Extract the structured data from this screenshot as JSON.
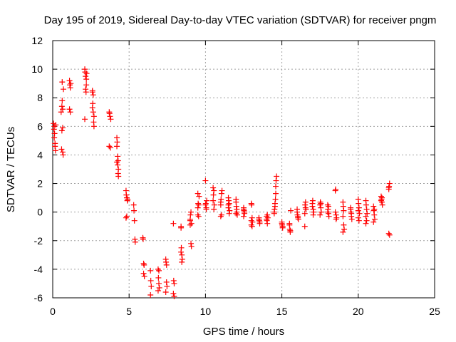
{
  "chart_data": {
    "type": "scatter",
    "title": "Day 195 of 2019, Sidereal Day-to-day VTEC variation (SDTVAR) for receiver pngm",
    "xlabel": "GPS time / hours",
    "ylabel": "SDTVAR / TECUs",
    "xlim": [
      0,
      25
    ],
    "ylim": [
      -6,
      12
    ],
    "xticks": [
      "0",
      "5",
      "10",
      "15",
      "20",
      "25"
    ],
    "yticks": [
      "-6",
      "-4",
      "-2",
      "0",
      "2",
      "4",
      "6",
      "8",
      "10",
      "12"
    ],
    "grid": true,
    "marker": "plus",
    "color": "#ff0000",
    "series": [
      {
        "name": "SDTVAR",
        "points": [
          [
            0.05,
            6.2
          ],
          [
            0.08,
            5.8
          ],
          [
            0.1,
            6.0
          ],
          [
            0.12,
            5.5
          ],
          [
            0.15,
            4.6
          ],
          [
            0.18,
            4.3
          ],
          [
            0.2,
            6.1
          ],
          [
            0.1,
            5.2
          ],
          [
            0.15,
            4.8
          ],
          [
            0.55,
            7.0
          ],
          [
            0.6,
            7.4
          ],
          [
            0.62,
            7.8
          ],
          [
            0.65,
            5.9
          ],
          [
            0.6,
            5.7
          ],
          [
            0.65,
            4.2
          ],
          [
            0.68,
            4.0
          ],
          [
            0.7,
            8.6
          ],
          [
            0.62,
            9.1
          ],
          [
            0.65,
            7.2
          ],
          [
            0.58,
            4.4
          ],
          [
            1.1,
            9.2
          ],
          [
            1.12,
            8.9
          ],
          [
            1.15,
            8.7
          ],
          [
            1.1,
            7.2
          ],
          [
            1.18,
            9.0
          ],
          [
            1.15,
            7.0
          ],
          [
            2.1,
            10.0
          ],
          [
            2.12,
            9.8
          ],
          [
            2.15,
            9.5
          ],
          [
            2.2,
            9.3
          ],
          [
            2.15,
            8.6
          ],
          [
            2.18,
            8.4
          ],
          [
            2.1,
            6.5
          ],
          [
            2.22,
            9.7
          ],
          [
            2.2,
            8.9
          ],
          [
            2.6,
            8.4
          ],
          [
            2.65,
            8.2
          ],
          [
            2.62,
            7.6
          ],
          [
            2.6,
            7.3
          ],
          [
            2.65,
            7.0
          ],
          [
            2.7,
            6.7
          ],
          [
            2.68,
            6.3
          ],
          [
            2.7,
            6.0
          ],
          [
            2.6,
            8.5
          ],
          [
            3.7,
            7.0
          ],
          [
            3.75,
            6.7
          ],
          [
            3.8,
            6.5
          ],
          [
            3.72,
            6.9
          ],
          [
            3.7,
            4.6
          ],
          [
            3.78,
            4.5
          ],
          [
            4.2,
            5.2
          ],
          [
            4.22,
            4.9
          ],
          [
            4.2,
            4.6
          ],
          [
            4.25,
            3.9
          ],
          [
            4.28,
            3.6
          ],
          [
            4.25,
            3.3
          ],
          [
            4.3,
            3.0
          ],
          [
            4.28,
            2.7
          ],
          [
            4.3,
            2.5
          ],
          [
            4.2,
            3.5
          ],
          [
            4.8,
            1.5
          ],
          [
            4.82,
            1.2
          ],
          [
            4.85,
            1.0
          ],
          [
            4.88,
            0.8
          ],
          [
            4.9,
            0.9
          ],
          [
            4.85,
            -0.3
          ],
          [
            4.8,
            -0.4
          ],
          [
            5.3,
            0.5
          ],
          [
            5.32,
            0.1
          ],
          [
            5.35,
            -0.6
          ],
          [
            5.38,
            -1.9
          ],
          [
            5.4,
            -2.1
          ],
          [
            5.9,
            -1.8
          ],
          [
            5.92,
            -1.9
          ],
          [
            5.95,
            -3.6
          ],
          [
            5.98,
            -3.7
          ],
          [
            5.95,
            -4.3
          ],
          [
            6.0,
            -4.5
          ],
          [
            6.4,
            -4.1
          ],
          [
            6.42,
            -4.8
          ],
          [
            6.45,
            -5.2
          ],
          [
            6.4,
            -5.8
          ],
          [
            6.9,
            -4.0
          ],
          [
            6.92,
            -4.6
          ],
          [
            6.95,
            -5.0
          ],
          [
            6.98,
            -5.3
          ],
          [
            6.9,
            -5.5
          ],
          [
            6.95,
            -4.1
          ],
          [
            7.4,
            -3.3
          ],
          [
            7.42,
            -3.5
          ],
          [
            7.45,
            -4.9
          ],
          [
            7.48,
            -5.2
          ],
          [
            7.4,
            -5.6
          ],
          [
            7.45,
            -3.7
          ],
          [
            7.9,
            -0.8
          ],
          [
            7.92,
            -4.8
          ],
          [
            7.95,
            -5.0
          ],
          [
            7.9,
            -5.7
          ],
          [
            7.95,
            -5.9
          ],
          [
            8.4,
            -1.0
          ],
          [
            8.42,
            -2.5
          ],
          [
            8.45,
            -3.0
          ],
          [
            8.48,
            -3.3
          ],
          [
            8.4,
            -2.8
          ],
          [
            8.45,
            -3.5
          ],
          [
            8.4,
            -1.1
          ],
          [
            9.0,
            -0.5
          ],
          [
            9.02,
            -0.2
          ],
          [
            9.05,
            0.0
          ],
          [
            9.08,
            -0.8
          ],
          [
            9.0,
            -0.9
          ],
          [
            9.05,
            -2.2
          ],
          [
            9.08,
            -2.4
          ],
          [
            9.0,
            -0.6
          ],
          [
            9.5,
            0.3
          ],
          [
            9.52,
            0.6
          ],
          [
            9.55,
            0.5
          ],
          [
            9.5,
            1.3
          ],
          [
            9.58,
            1.1
          ],
          [
            9.5,
            -0.2
          ],
          [
            9.55,
            -0.3
          ],
          [
            10.0,
            2.2
          ],
          [
            10.02,
            0.6
          ],
          [
            10.05,
            0.3
          ],
          [
            10.08,
            0.8
          ],
          [
            10.0,
            0.5
          ],
          [
            10.05,
            0.2
          ],
          [
            10.5,
            0.8
          ],
          [
            10.52,
            1.2
          ],
          [
            10.55,
            1.5
          ],
          [
            10.5,
            1.7
          ],
          [
            10.58,
            0.5
          ],
          [
            10.55,
            0.2
          ],
          [
            11.0,
            0.5
          ],
          [
            11.02,
            0.9
          ],
          [
            11.05,
            1.3
          ],
          [
            11.08,
            1.5
          ],
          [
            11.0,
            -0.3
          ],
          [
            11.05,
            -0.2
          ],
          [
            11.0,
            0.7
          ],
          [
            11.5,
            1.0
          ],
          [
            11.52,
            0.8
          ],
          [
            11.55,
            0.6
          ],
          [
            11.5,
            0.3
          ],
          [
            11.58,
            0.1
          ],
          [
            11.55,
            -0.1
          ],
          [
            11.5,
            0.5
          ],
          [
            12.0,
            0.7
          ],
          [
            12.02,
            0.4
          ],
          [
            12.05,
            0.0
          ],
          [
            12.08,
            -0.2
          ],
          [
            12.0,
            0.9
          ],
          [
            12.05,
            0.2
          ],
          [
            12.0,
            -0.1
          ],
          [
            12.5,
            0.3
          ],
          [
            12.52,
            0.1
          ],
          [
            12.55,
            -0.1
          ],
          [
            12.5,
            -0.3
          ],
          [
            12.55,
            0.0
          ],
          [
            12.5,
            0.2
          ],
          [
            13.0,
            0.6
          ],
          [
            13.02,
            0.5
          ],
          [
            13.05,
            -0.4
          ],
          [
            13.08,
            -0.7
          ],
          [
            13.0,
            -0.9
          ],
          [
            13.05,
            -1.0
          ],
          [
            13.0,
            -0.6
          ],
          [
            13.5,
            -0.4
          ],
          [
            13.52,
            -0.6
          ],
          [
            13.55,
            -0.8
          ],
          [
            13.5,
            -0.5
          ],
          [
            13.55,
            -0.7
          ],
          [
            14.0,
            -0.3
          ],
          [
            14.02,
            -0.6
          ],
          [
            14.05,
            -0.8
          ],
          [
            14.0,
            -0.5
          ],
          [
            14.08,
            -0.4
          ],
          [
            14.05,
            -0.2
          ],
          [
            14.5,
            0.0
          ],
          [
            14.52,
            0.2
          ],
          [
            14.55,
            0.4
          ],
          [
            14.58,
            0.9
          ],
          [
            14.6,
            1.3
          ],
          [
            14.6,
            1.8
          ],
          [
            14.62,
            2.2
          ],
          [
            14.65,
            2.5
          ],
          [
            14.55,
            0.6
          ],
          [
            14.5,
            -0.1
          ],
          [
            15.0,
            -0.7
          ],
          [
            15.02,
            -0.9
          ],
          [
            15.05,
            -1.1
          ],
          [
            15.0,
            -0.8
          ],
          [
            15.05,
            -1.0
          ],
          [
            15.5,
            -0.9
          ],
          [
            15.52,
            -1.2
          ],
          [
            15.55,
            -1.4
          ],
          [
            15.5,
            -0.8
          ],
          [
            15.58,
            0.1
          ],
          [
            15.55,
            -1.3
          ],
          [
            16.0,
            0.0
          ],
          [
            16.02,
            -0.2
          ],
          [
            16.05,
            -0.4
          ],
          [
            16.08,
            -0.5
          ],
          [
            16.0,
            0.2
          ],
          [
            16.05,
            -0.3
          ],
          [
            16.5,
            -1.0
          ],
          [
            16.52,
            0.5
          ],
          [
            16.55,
            0.7
          ],
          [
            16.58,
            0.2
          ],
          [
            16.5,
            -0.1
          ],
          [
            16.55,
            0.3
          ],
          [
            17.0,
            0.4
          ],
          [
            17.02,
            0.8
          ],
          [
            17.05,
            0.2
          ],
          [
            17.08,
            0.0
          ],
          [
            17.0,
            0.6
          ],
          [
            17.05,
            -0.2
          ],
          [
            17.5,
            0.5
          ],
          [
            17.52,
            0.7
          ],
          [
            17.55,
            0.3
          ],
          [
            17.58,
            0.0
          ],
          [
            17.5,
            -0.2
          ],
          [
            17.55,
            0.6
          ],
          [
            18.0,
            0.5
          ],
          [
            18.02,
            0.2
          ],
          [
            18.05,
            -0.1
          ],
          [
            18.08,
            -0.3
          ],
          [
            18.0,
            0.0
          ],
          [
            18.05,
            0.4
          ],
          [
            18.5,
            1.5
          ],
          [
            18.52,
            1.6
          ],
          [
            18.55,
            -0.2
          ],
          [
            18.58,
            -0.4
          ],
          [
            18.5,
            0.0
          ],
          [
            18.55,
            -0.5
          ],
          [
            19.0,
            0.7
          ],
          [
            19.02,
            0.4
          ],
          [
            19.05,
            -0.9
          ],
          [
            19.08,
            -1.2
          ],
          [
            19.0,
            -1.4
          ],
          [
            19.05,
            0.1
          ],
          [
            19.0,
            -0.3
          ],
          [
            19.5,
            0.3
          ],
          [
            19.52,
            0.0
          ],
          [
            19.55,
            -0.3
          ],
          [
            19.58,
            -0.5
          ],
          [
            19.5,
            0.2
          ],
          [
            19.55,
            -0.1
          ],
          [
            20.0,
            0.9
          ],
          [
            20.02,
            0.6
          ],
          [
            20.05,
            0.3
          ],
          [
            20.08,
            -0.1
          ],
          [
            20.0,
            -0.4
          ],
          [
            20.05,
            -0.6
          ],
          [
            20.0,
            0.1
          ],
          [
            20.5,
            0.8
          ],
          [
            20.52,
            0.5
          ],
          [
            20.55,
            0.2
          ],
          [
            20.58,
            -0.1
          ],
          [
            20.5,
            -0.3
          ],
          [
            20.55,
            -0.6
          ],
          [
            20.5,
            -0.8
          ],
          [
            21.0,
            0.4
          ],
          [
            21.02,
            0.1
          ],
          [
            21.05,
            -0.2
          ],
          [
            21.08,
            -0.5
          ],
          [
            21.0,
            -0.7
          ],
          [
            21.05,
            0.2
          ],
          [
            21.5,
            1.1
          ],
          [
            21.52,
            0.9
          ],
          [
            21.55,
            0.7
          ],
          [
            21.58,
            0.5
          ],
          [
            21.5,
            0.8
          ],
          [
            21.55,
            1.0
          ],
          [
            22.0,
            1.6
          ],
          [
            22.02,
            1.8
          ],
          [
            22.05,
            2.0
          ],
          [
            22.0,
            -1.5
          ],
          [
            22.05,
            -1.6
          ],
          [
            22.0,
            1.7
          ]
        ]
      }
    ]
  }
}
